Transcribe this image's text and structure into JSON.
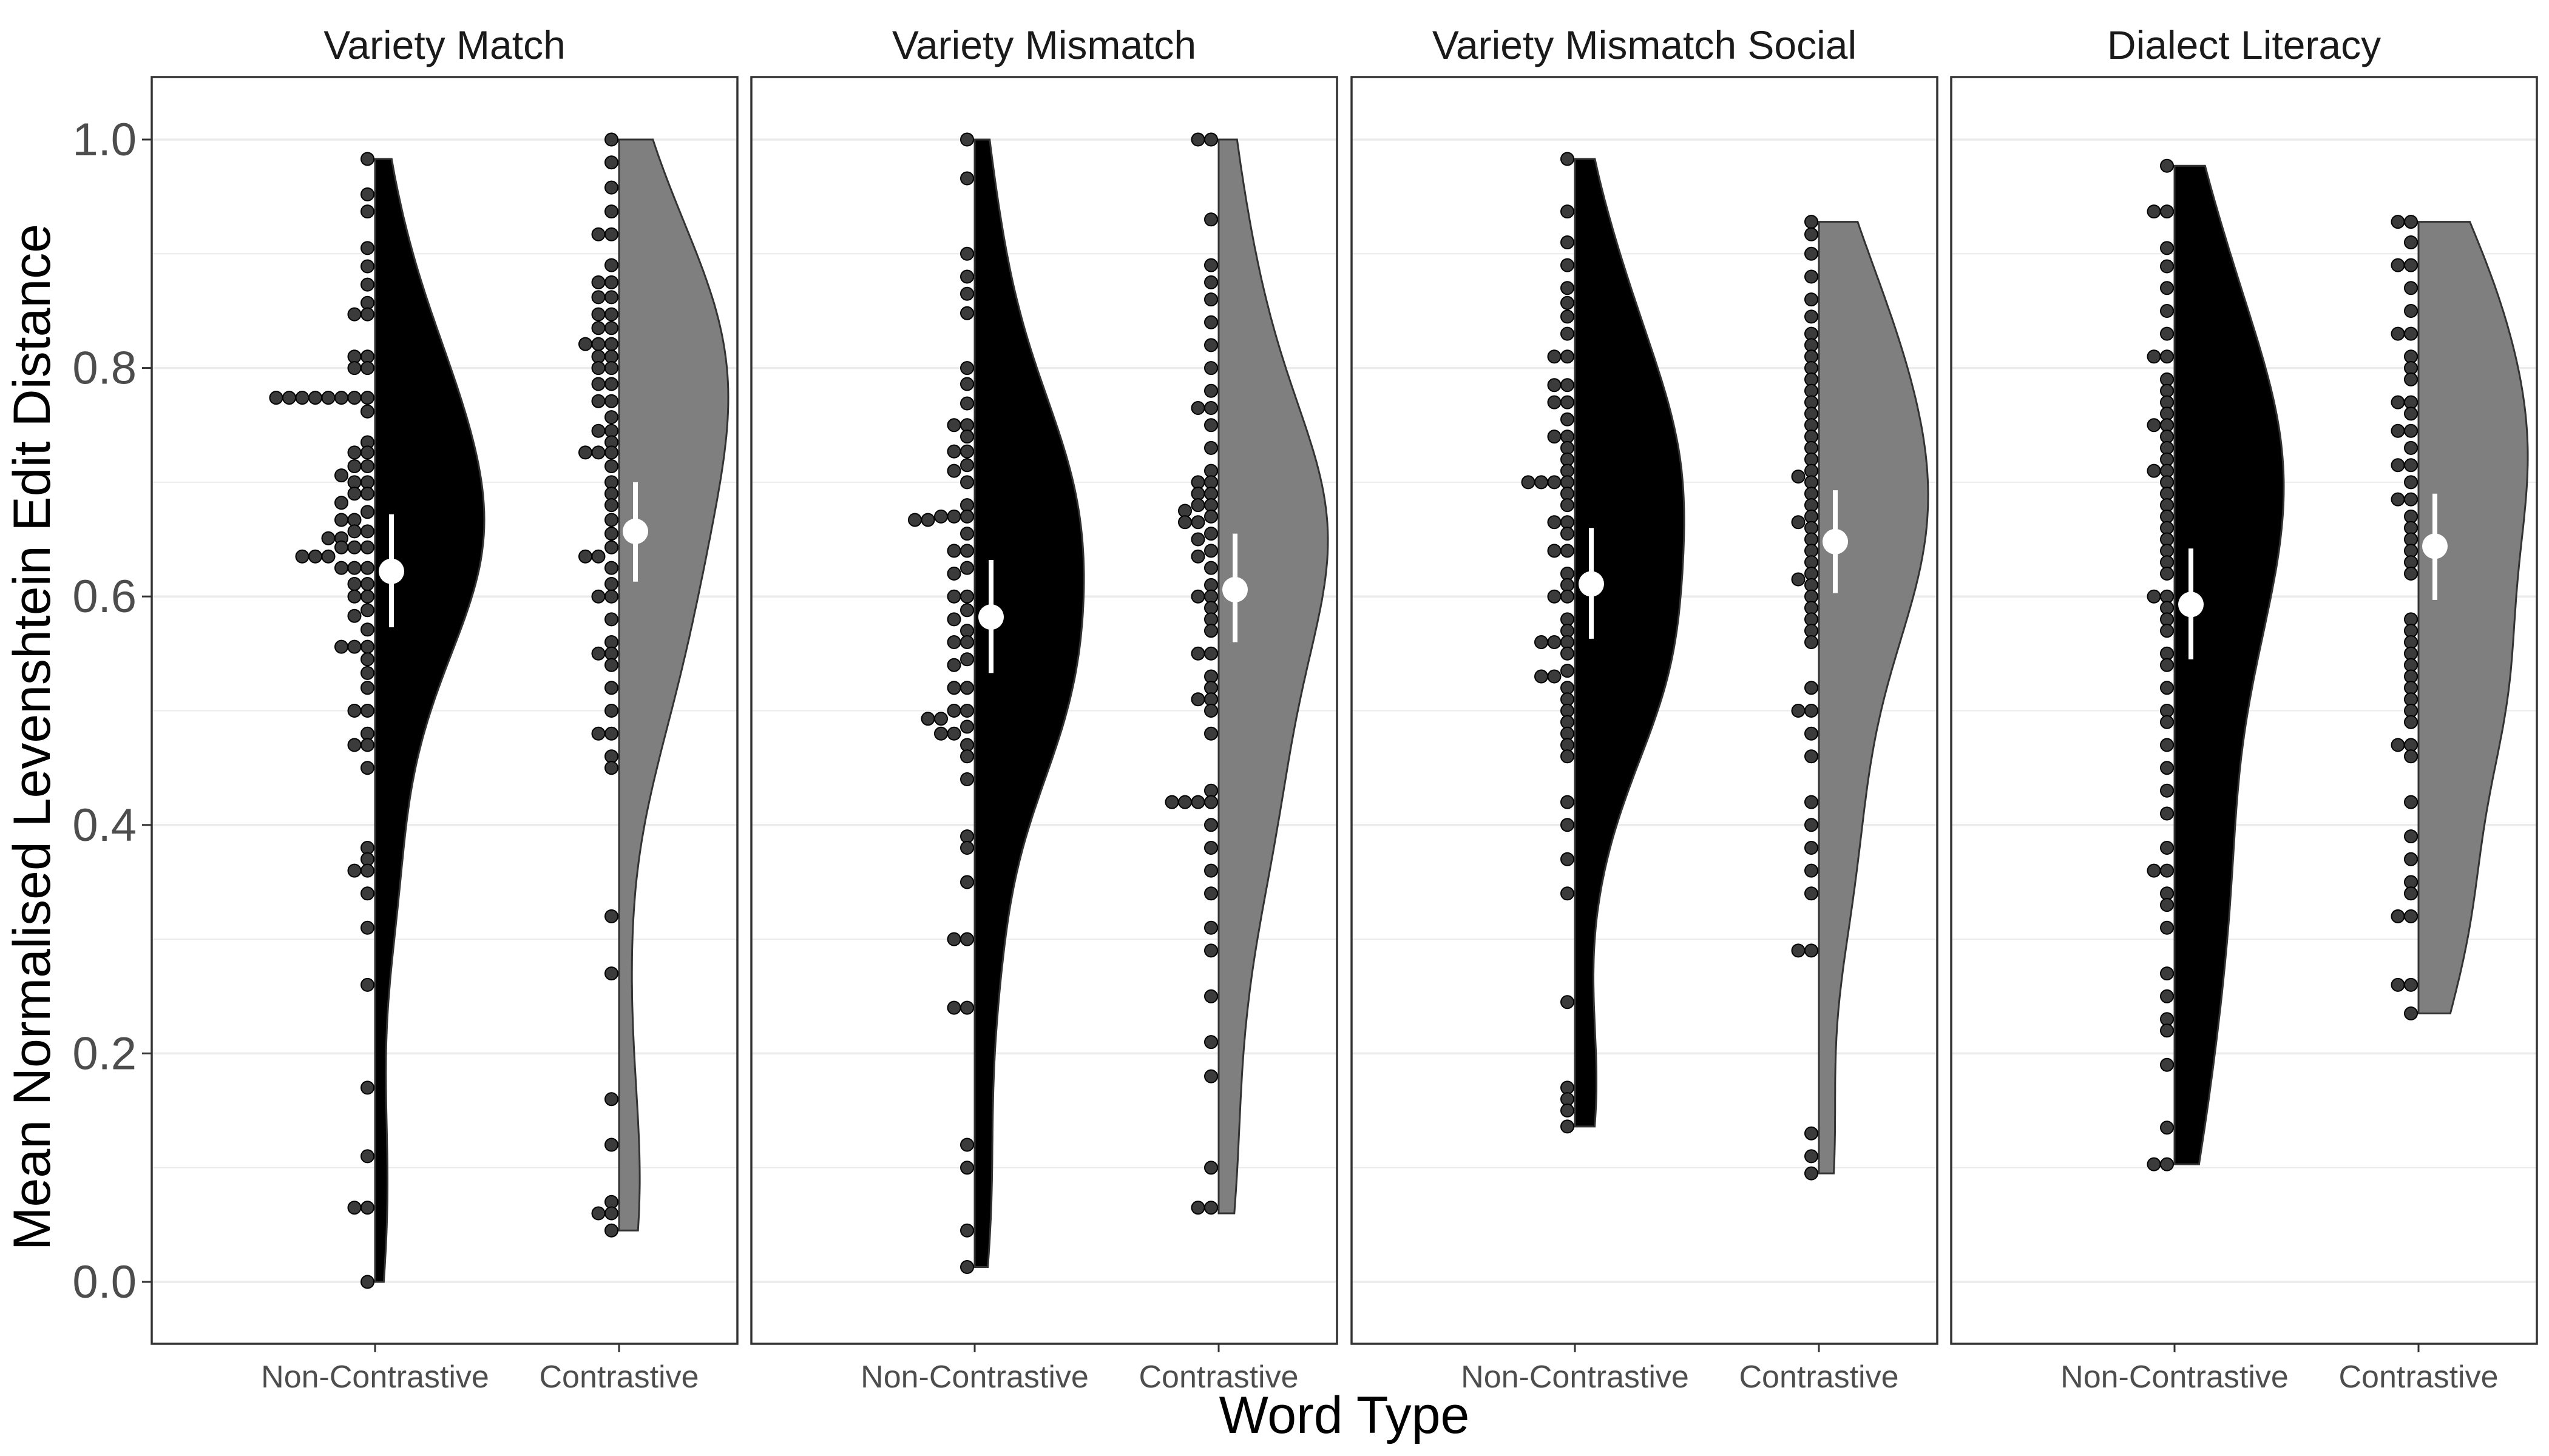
{
  "chart_data": {
    "type": "raincloud",
    "ylabel": "Mean Normalised Levenshtein Edit Distance",
    "xlabel": "Word Type",
    "ylim": [
      -0.05,
      1.05
    ],
    "y_ticks": [
      "0.0",
      "0.2",
      "0.4",
      "0.6",
      "0.8",
      "1.0"
    ],
    "y_tick_values": [
      0.0,
      0.2,
      0.4,
      0.6,
      0.8,
      1.0
    ],
    "categories": [
      "Non-Contrastive",
      "Contrastive"
    ],
    "grid": "horizontal major and minor",
    "colors": {
      "Non-Contrastive": "#000000",
      "Contrastive": "#7f7f7f",
      "mean_point": "#ffffff",
      "dots": "#3b3b3b"
    },
    "panels": [
      {
        "title": "Variety Match",
        "groups": [
          {
            "word_type": "Non-Contrastive",
            "mean": 0.622,
            "ci": [
              0.573,
              0.672
            ],
            "min": 0.0,
            "max": 0.983,
            "points": [
              0.983,
              0.952,
              0.937,
              0.905,
              0.889,
              0.873,
              0.857,
              0.847,
              0.847,
              0.81,
              0.81,
              0.8,
              0.8,
              0.774,
              0.774,
              0.774,
              0.774,
              0.774,
              0.774,
              0.774,
              0.774,
              0.762,
              0.735,
              0.726,
              0.726,
              0.714,
              0.714,
              0.706,
              0.7,
              0.7,
              0.69,
              0.69,
              0.682,
              0.674,
              0.667,
              0.667,
              0.657,
              0.657,
              0.651,
              0.651,
              0.643,
              0.643,
              0.643,
              0.635,
              0.635,
              0.635,
              0.625,
              0.625,
              0.625,
              0.611,
              0.611,
              0.6,
              0.6,
              0.588,
              0.583,
              0.571,
              0.556,
              0.556,
              0.556,
              0.545,
              0.533,
              0.52,
              0.5,
              0.5,
              0.48,
              0.47,
              0.47,
              0.45,
              0.38,
              0.37,
              0.36,
              0.36,
              0.34,
              0.31,
              0.26,
              0.17,
              0.11,
              0.065,
              0.065,
              0.0
            ]
          },
          {
            "word_type": "Contrastive",
            "mean": 0.657,
            "ci": [
              0.613,
              0.7
            ],
            "min": 0.045,
            "max": 1.0,
            "points": [
              1.0,
              0.98,
              0.958,
              0.937,
              0.917,
              0.917,
              0.89,
              0.875,
              0.875,
              0.862,
              0.862,
              0.847,
              0.847,
              0.835,
              0.835,
              0.821,
              0.821,
              0.821,
              0.81,
              0.81,
              0.8,
              0.8,
              0.786,
              0.786,
              0.771,
              0.771,
              0.757,
              0.745,
              0.745,
              0.735,
              0.726,
              0.726,
              0.726,
              0.714,
              0.7,
              0.69,
              0.68,
              0.667,
              0.655,
              0.643,
              0.635,
              0.635,
              0.625,
              0.611,
              0.6,
              0.6,
              0.58,
              0.56,
              0.55,
              0.55,
              0.54,
              0.52,
              0.5,
              0.48,
              0.48,
              0.46,
              0.45,
              0.32,
              0.27,
              0.16,
              0.12,
              0.07,
              0.06,
              0.06,
              0.045
            ]
          }
        ]
      },
      {
        "title": "Variety Mismatch",
        "groups": [
          {
            "word_type": "Non-Contrastive",
            "mean": 0.582,
            "ci": [
              0.533,
              0.632
            ],
            "min": 0.013,
            "max": 1.0,
            "points": [
              1.0,
              0.966,
              0.9,
              0.88,
              0.865,
              0.848,
              0.8,
              0.786,
              0.769,
              0.75,
              0.75,
              0.74,
              0.727,
              0.727,
              0.715,
              0.71,
              0.7,
              0.68,
              0.67,
              0.67,
              0.67,
              0.667,
              0.667,
              0.655,
              0.64,
              0.64,
              0.625,
              0.62,
              0.6,
              0.6,
              0.588,
              0.58,
              0.57,
              0.56,
              0.56,
              0.545,
              0.54,
              0.52,
              0.52,
              0.5,
              0.5,
              0.493,
              0.493,
              0.486,
              0.48,
              0.48,
              0.47,
              0.46,
              0.44,
              0.39,
              0.38,
              0.35,
              0.3,
              0.3,
              0.24,
              0.24,
              0.12,
              0.1,
              0.045,
              0.013
            ]
          },
          {
            "word_type": "Contrastive",
            "mean": 0.606,
            "ci": [
              0.56,
              0.655
            ],
            "min": 0.06,
            "max": 1.0,
            "points": [
              1.0,
              1.0,
              0.93,
              0.89,
              0.875,
              0.86,
              0.84,
              0.82,
              0.8,
              0.78,
              0.765,
              0.765,
              0.75,
              0.73,
              0.71,
              0.7,
              0.7,
              0.69,
              0.69,
              0.68,
              0.68,
              0.675,
              0.67,
              0.665,
              0.665,
              0.655,
              0.65,
              0.64,
              0.635,
              0.625,
              0.61,
              0.6,
              0.6,
              0.59,
              0.58,
              0.57,
              0.55,
              0.55,
              0.53,
              0.52,
              0.51,
              0.51,
              0.5,
              0.48,
              0.43,
              0.42,
              0.42,
              0.42,
              0.42,
              0.4,
              0.38,
              0.36,
              0.34,
              0.31,
              0.29,
              0.25,
              0.21,
              0.18,
              0.1,
              0.065,
              0.065
            ]
          }
        ]
      },
      {
        "title": "Variety Mismatch Social",
        "groups": [
          {
            "word_type": "Non-Contrastive",
            "mean": 0.611,
            "ci": [
              0.563,
              0.66
            ],
            "min": 0.136,
            "max": 0.983,
            "points": [
              0.983,
              0.937,
              0.91,
              0.89,
              0.87,
              0.857,
              0.845,
              0.83,
              0.81,
              0.81,
              0.785,
              0.785,
              0.77,
              0.77,
              0.755,
              0.74,
              0.74,
              0.73,
              0.72,
              0.71,
              0.7,
              0.7,
              0.7,
              0.7,
              0.69,
              0.68,
              0.665,
              0.665,
              0.655,
              0.64,
              0.64,
              0.62,
              0.61,
              0.6,
              0.6,
              0.58,
              0.57,
              0.56,
              0.56,
              0.56,
              0.55,
              0.535,
              0.53,
              0.53,
              0.52,
              0.51,
              0.5,
              0.49,
              0.48,
              0.47,
              0.46,
              0.42,
              0.4,
              0.37,
              0.34,
              0.245,
              0.17,
              0.16,
              0.15,
              0.136
            ]
          },
          {
            "word_type": "Contrastive",
            "mean": 0.648,
            "ci": [
              0.603,
              0.693
            ],
            "min": 0.095,
            "max": 0.928,
            "points": [
              0.928,
              0.917,
              0.9,
              0.88,
              0.86,
              0.845,
              0.83,
              0.82,
              0.81,
              0.8,
              0.79,
              0.78,
              0.77,
              0.76,
              0.75,
              0.74,
              0.73,
              0.72,
              0.71,
              0.705,
              0.7,
              0.69,
              0.68,
              0.67,
              0.665,
              0.66,
              0.65,
              0.64,
              0.63,
              0.62,
              0.615,
              0.61,
              0.6,
              0.59,
              0.58,
              0.57,
              0.56,
              0.52,
              0.5,
              0.5,
              0.48,
              0.46,
              0.42,
              0.4,
              0.38,
              0.36,
              0.34,
              0.29,
              0.29,
              0.13,
              0.11,
              0.095
            ]
          }
        ]
      },
      {
        "title": "Dialect Literacy",
        "groups": [
          {
            "word_type": "Non-Contrastive",
            "mean": 0.593,
            "ci": [
              0.545,
              0.642
            ],
            "min": 0.103,
            "max": 0.977,
            "points": [
              0.977,
              0.937,
              0.937,
              0.905,
              0.889,
              0.87,
              0.85,
              0.83,
              0.81,
              0.81,
              0.79,
              0.78,
              0.77,
              0.76,
              0.75,
              0.75,
              0.74,
              0.73,
              0.72,
              0.71,
              0.71,
              0.7,
              0.69,
              0.68,
              0.67,
              0.66,
              0.65,
              0.64,
              0.63,
              0.62,
              0.6,
              0.6,
              0.59,
              0.58,
              0.57,
              0.55,
              0.54,
              0.52,
              0.5,
              0.49,
              0.47,
              0.45,
              0.43,
              0.41,
              0.38,
              0.36,
              0.36,
              0.34,
              0.33,
              0.31,
              0.27,
              0.25,
              0.23,
              0.22,
              0.19,
              0.135,
              0.103,
              0.103
            ]
          },
          {
            "word_type": "Contrastive",
            "mean": 0.644,
            "ci": [
              0.597,
              0.69
            ],
            "min": 0.235,
            "max": 0.928,
            "points": [
              0.928,
              0.928,
              0.91,
              0.89,
              0.89,
              0.87,
              0.85,
              0.83,
              0.83,
              0.81,
              0.8,
              0.79,
              0.77,
              0.77,
              0.76,
              0.745,
              0.745,
              0.73,
              0.715,
              0.715,
              0.7,
              0.685,
              0.685,
              0.67,
              0.66,
              0.65,
              0.64,
              0.63,
              0.62,
              0.58,
              0.57,
              0.56,
              0.55,
              0.54,
              0.53,
              0.52,
              0.51,
              0.5,
              0.49,
              0.47,
              0.47,
              0.46,
              0.42,
              0.39,
              0.37,
              0.35,
              0.34,
              0.32,
              0.32,
              0.26,
              0.26,
              0.235
            ]
          }
        ]
      }
    ]
  }
}
